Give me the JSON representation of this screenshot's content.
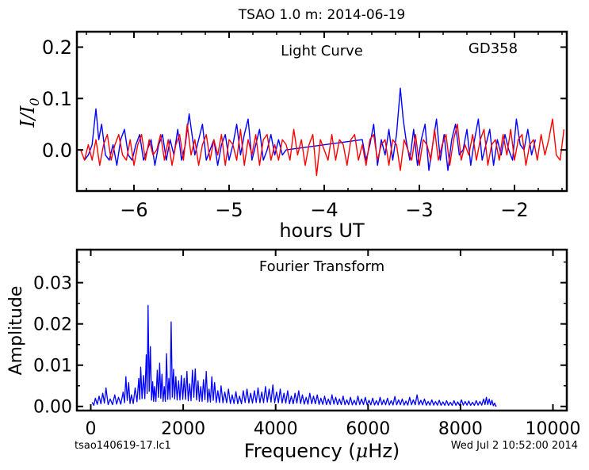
{
  "figure": {
    "title": "TSAO 1.0 m:  2014-06-19",
    "footer_left": "tsao140619-17.lc1",
    "footer_right": "Wed Jul  2 10:52:00 2014"
  },
  "chart_data": [
    {
      "type": "line",
      "title": "Light Curve",
      "annotation": "GD358",
      "xlabel": "hours UT",
      "ylabel": "I/I",
      "ylabel_subscript": "0",
      "xlim": [
        -6.6,
        -1.45
      ],
      "ylim": [
        -0.08,
        0.23
      ],
      "xticks": [
        -6,
        -5,
        -4,
        -3,
        -2
      ],
      "xtick_labels": [
        "−6",
        "−5",
        "−4",
        "−3",
        "−2"
      ],
      "yticks": [
        0.0,
        0.1,
        0.2
      ],
      "ytick_labels": [
        "0.0",
        "0.1",
        "0.2"
      ],
      "colors": {
        "series_a": "#0000ff",
        "series_b": "#ff0000"
      },
      "series": [
        {
          "color": "#0000ff",
          "x": [
            -6.52,
            -6.48,
            -6.44,
            -6.4,
            -6.37,
            -6.34,
            -6.3,
            -6.26,
            -6.22,
            -6.18,
            -6.14,
            -6.1,
            -6.06,
            -6.02,
            -5.98,
            -5.94,
            -5.9,
            -5.86,
            -5.82,
            -5.78,
            -5.74,
            -5.7,
            -5.66,
            -5.62,
            -5.58,
            -5.54,
            -5.5,
            -5.46,
            -5.42,
            -5.39,
            -5.36,
            -5.32,
            -5.28,
            -5.24,
            -5.2,
            -5.16,
            -5.12,
            -5.08,
            -5.04,
            -5.0,
            -4.96,
            -4.92,
            -4.88,
            -4.84,
            -4.8,
            -4.76,
            -4.72,
            -4.68,
            -4.64,
            -4.6,
            -4.56,
            -4.52,
            -4.48,
            -4.44,
            -4.4,
            -3.6,
            -3.56,
            -3.52,
            -3.48,
            -3.44,
            -3.4,
            -3.36,
            -3.32,
            -3.28,
            -3.24,
            -3.2,
            -3.17,
            -3.14,
            -3.1,
            -3.06,
            -3.02,
            -2.98,
            -2.94,
            -2.9,
            -2.86,
            -2.82,
            -2.78,
            -2.74,
            -2.7,
            -2.66,
            -2.62,
            -2.58,
            -2.54,
            -2.5,
            -2.46,
            -2.42,
            -2.38,
            -2.34,
            -2.3,
            -2.26,
            -2.22,
            -2.18,
            -2.14,
            -2.1,
            -2.06,
            -2.02,
            -1.98,
            -1.94,
            -1.9,
            -1.86,
            -1.82,
            -1.78
          ],
          "y": [
            -0.02,
            -0.01,
            0.01,
            0.08,
            0.02,
            0.05,
            -0.01,
            -0.02,
            0.01,
            -0.03,
            0.02,
            0.04,
            -0.01,
            -0.02,
            0.01,
            0.03,
            -0.02,
            0.0,
            0.02,
            -0.03,
            0.01,
            0.03,
            -0.02,
            0.02,
            -0.01,
            0.04,
            -0.02,
            0.01,
            0.07,
            0.03,
            -0.01,
            0.02,
            0.05,
            -0.02,
            0.0,
            0.02,
            -0.03,
            0.01,
            0.03,
            -0.02,
            0.01,
            0.05,
            -0.01,
            0.03,
            0.06,
            -0.02,
            0.01,
            0.04,
            -0.02,
            0.0,
            0.03,
            -0.01,
            0.02,
            -0.01,
            0.0,
            0.02,
            -0.02,
            0.01,
            0.05,
            -0.03,
            0.02,
            -0.01,
            0.04,
            -0.02,
            0.03,
            0.12,
            0.06,
            0.02,
            -0.02,
            0.04,
            -0.03,
            0.02,
            0.05,
            -0.04,
            0.01,
            0.06,
            -0.02,
            0.03,
            -0.04,
            0.02,
            0.05,
            -0.01,
            0.0,
            0.04,
            -0.03,
            0.02,
            0.06,
            -0.02,
            0.01,
            0.04,
            -0.03,
            0.02,
            -0.01,
            0.03,
            0.0,
            -0.02,
            0.06,
            0.01,
            0.0,
            0.04,
            -0.01,
            0.02
          ]
        },
        {
          "color": "#ff0000",
          "x": [
            -6.56,
            -6.52,
            -6.48,
            -6.44,
            -6.4,
            -6.36,
            -6.32,
            -6.28,
            -6.24,
            -6.2,
            -6.16,
            -6.12,
            -6.08,
            -6.04,
            -6.0,
            -5.96,
            -5.92,
            -5.88,
            -5.84,
            -5.8,
            -5.76,
            -5.72,
            -5.68,
            -5.64,
            -5.6,
            -5.56,
            -5.52,
            -5.48,
            -5.44,
            -5.4,
            -5.36,
            -5.32,
            -5.28,
            -5.24,
            -5.2,
            -5.16,
            -5.12,
            -5.08,
            -5.04,
            -5.0,
            -4.96,
            -4.92,
            -4.88,
            -4.84,
            -4.8,
            -4.76,
            -4.72,
            -4.68,
            -4.64,
            -4.6,
            -4.56,
            -4.52,
            -4.48,
            -4.44,
            -4.4,
            -4.36,
            -4.32,
            -4.28,
            -4.24,
            -4.2,
            -4.16,
            -4.12,
            -4.08,
            -4.04,
            -4.0,
            -3.96,
            -3.92,
            -3.88,
            -3.84,
            -3.8,
            -3.76,
            -3.72,
            -3.68,
            -3.64,
            -3.6,
            -3.56,
            -3.52,
            -3.48,
            -3.44,
            -3.4,
            -3.36,
            -3.32,
            -3.28,
            -3.24,
            -3.2,
            -3.16,
            -3.12,
            -3.08,
            -3.04,
            -3.0,
            -2.96,
            -2.92,
            -2.88,
            -2.84,
            -2.8,
            -2.76,
            -2.72,
            -2.68,
            -2.64,
            -2.6,
            -2.56,
            -2.52,
            -2.48,
            -2.44,
            -2.4,
            -2.36,
            -2.32,
            -2.28,
            -2.24,
            -2.2,
            -2.16,
            -2.12,
            -2.08,
            -2.04,
            -2.0,
            -1.96,
            -1.92,
            -1.88,
            -1.84,
            -1.8,
            -1.76,
            -1.72,
            -1.68,
            -1.64,
            -1.6,
            -1.56,
            -1.52,
            -1.48
          ],
          "y": [
            0.0,
            -0.02,
            0.01,
            -0.02,
            0.02,
            -0.03,
            0.01,
            0.03,
            -0.02,
            0.01,
            0.03,
            -0.01,
            -0.02,
            0.02,
            -0.03,
            0.01,
            0.03,
            -0.02,
            0.02,
            -0.01,
            0.0,
            0.03,
            -0.02,
            0.02,
            -0.03,
            0.01,
            0.03,
            -0.02,
            0.05,
            -0.01,
            0.02,
            -0.03,
            0.01,
            0.03,
            -0.02,
            0.02,
            -0.01,
            0.03,
            -0.03,
            0.02,
            0.01,
            -0.02,
            0.04,
            -0.03,
            0.02,
            -0.01,
            0.03,
            -0.03,
            0.02,
            0.03,
            -0.02,
            0.01,
            -0.02,
            0.02,
            0.01,
            -0.02,
            0.04,
            -0.01,
            0.02,
            -0.03,
            0.01,
            0.03,
            -0.05,
            0.02,
            0.0,
            -0.02,
            0.03,
            -0.02,
            0.02,
            0.01,
            -0.03,
            0.02,
            0.03,
            -0.02,
            0.01,
            -0.03,
            0.02,
            0.03,
            -0.02,
            0.01,
            0.02,
            -0.03,
            0.02,
            0.01,
            -0.04,
            0.02,
            0.0,
            -0.02,
            0.03,
            -0.03,
            0.02,
            0.01,
            -0.02,
            0.04,
            -0.02,
            0.01,
            0.03,
            -0.03,
            0.02,
            0.05,
            -0.02,
            0.01,
            -0.01,
            0.03,
            -0.02,
            0.02,
            0.04,
            -0.03,
            0.01,
            0.02,
            -0.02,
            0.03,
            -0.01,
            0.04,
            -0.02,
            0.02,
            0.03,
            -0.03,
            0.01,
            0.02,
            -0.02,
            0.03,
            -0.01,
            0.02,
            0.06,
            -0.01,
            -0.02,
            0.04
          ]
        }
      ]
    },
    {
      "type": "line",
      "title": "Fourier Transform",
      "xlabel_prefix": "Frequency (",
      "xlabel_mu": "μ",
      "xlabel_suffix": "Hz)",
      "ylabel": "Amplitude",
      "xlim": [
        -300,
        10300
      ],
      "ylim": [
        -0.001,
        0.038
      ],
      "xticks": [
        0,
        2000,
        4000,
        6000,
        8000,
        10000
      ],
      "xtick_labels": [
        "0",
        "2000",
        "4000",
        "6000",
        "8000",
        "10000"
      ],
      "yticks": [
        0.0,
        0.01,
        0.02,
        0.03
      ],
      "ytick_labels": [
        "0.00",
        "0.01",
        "0.02",
        "0.03"
      ],
      "colors": {
        "series_a": "#0000ff"
      },
      "series": [
        {
          "color": "#0000ff",
          "peaks": [
            [
              30,
              0.001
            ],
            [
              100,
              0.002
            ],
            [
              180,
              0.0025
            ],
            [
              260,
              0.0032
            ],
            [
              330,
              0.0045
            ],
            [
              420,
              0.0018
            ],
            [
              520,
              0.0028
            ],
            [
              600,
              0.0022
            ],
            [
              700,
              0.0035
            ],
            [
              760,
              0.0072
            ],
            [
              820,
              0.0058
            ],
            [
              880,
              0.0028
            ],
            [
              960,
              0.0045
            ],
            [
              1040,
              0.0068
            ],
            [
              1080,
              0.0095
            ],
            [
              1140,
              0.0075
            ],
            [
              1200,
              0.0125
            ],
            [
              1240,
              0.0245
            ],
            [
              1290,
              0.0145
            ],
            [
              1340,
              0.006
            ],
            [
              1380,
              0.0048
            ],
            [
              1440,
              0.0088
            ],
            [
              1490,
              0.0105
            ],
            [
              1540,
              0.0078
            ],
            [
              1590,
              0.0048
            ],
            [
              1640,
              0.0128
            ],
            [
              1690,
              0.0068
            ],
            [
              1740,
              0.0205
            ],
            [
              1790,
              0.009
            ],
            [
              1840,
              0.0072
            ],
            [
              1900,
              0.0062
            ],
            [
              1960,
              0.0075
            ],
            [
              2020,
              0.0068
            ],
            [
              2080,
              0.0085
            ],
            [
              2140,
              0.0055
            ],
            [
              2200,
              0.0088
            ],
            [
              2260,
              0.0091
            ],
            [
              2320,
              0.0062
            ],
            [
              2380,
              0.0048
            ],
            [
              2440,
              0.0065
            ],
            [
              2500,
              0.0085
            ],
            [
              2560,
              0.0042
            ],
            [
              2620,
              0.0072
            ],
            [
              2680,
              0.0058
            ],
            [
              2750,
              0.0038
            ],
            [
              2820,
              0.005
            ],
            [
              2900,
              0.0035
            ],
            [
              2980,
              0.0042
            ],
            [
              3060,
              0.0028
            ],
            [
              3140,
              0.0036
            ],
            [
              3220,
              0.0025
            ],
            [
              3300,
              0.0038
            ],
            [
              3380,
              0.0042
            ],
            [
              3460,
              0.0032
            ],
            [
              3540,
              0.0038
            ],
            [
              3620,
              0.0045
            ],
            [
              3700,
              0.0035
            ],
            [
              3780,
              0.0048
            ],
            [
              3860,
              0.0042
            ],
            [
              3940,
              0.0052
            ],
            [
              4020,
              0.0035
            ],
            [
              4100,
              0.0042
            ],
            [
              4180,
              0.0032
            ],
            [
              4260,
              0.0038
            ],
            [
              4340,
              0.0025
            ],
            [
              4420,
              0.0032
            ],
            [
              4500,
              0.0038
            ],
            [
              4580,
              0.0028
            ],
            [
              4660,
              0.0022
            ],
            [
              4740,
              0.0032
            ],
            [
              4820,
              0.0025
            ],
            [
              4900,
              0.0028
            ],
            [
              4980,
              0.002
            ],
            [
              5060,
              0.0025
            ],
            [
              5140,
              0.0018
            ],
            [
              5220,
              0.0028
            ],
            [
              5300,
              0.0022
            ],
            [
              5380,
              0.0018
            ],
            [
              5460,
              0.0025
            ],
            [
              5540,
              0.0016
            ],
            [
              5620,
              0.0022
            ],
            [
              5700,
              0.0015
            ],
            [
              5780,
              0.0025
            ],
            [
              5860,
              0.0018
            ],
            [
              5940,
              0.0022
            ],
            [
              6020,
              0.0015
            ],
            [
              6100,
              0.002
            ],
            [
              6180,
              0.0014
            ],
            [
              6260,
              0.0022
            ],
            [
              6340,
              0.0016
            ],
            [
              6420,
              0.002
            ],
            [
              6500,
              0.0014
            ],
            [
              6580,
              0.0024
            ],
            [
              6660,
              0.0016
            ],
            [
              6740,
              0.0018
            ],
            [
              6820,
              0.0013
            ],
            [
              6900,
              0.0022
            ],
            [
              6980,
              0.0016
            ],
            [
              7060,
              0.0028
            ],
            [
              7140,
              0.0015
            ],
            [
              7220,
              0.0018
            ],
            [
              7300,
              0.0012
            ],
            [
              7380,
              0.0016
            ],
            [
              7460,
              0.0012
            ],
            [
              7540,
              0.0015
            ],
            [
              7620,
              0.0011
            ],
            [
              7700,
              0.0014
            ],
            [
              7780,
              0.001
            ],
            [
              7860,
              0.0014
            ],
            [
              7940,
              0.0011
            ],
            [
              8020,
              0.0016
            ],
            [
              8100,
              0.0012
            ],
            [
              8180,
              0.0013
            ],
            [
              8260,
              0.001
            ],
            [
              8340,
              0.0014
            ],
            [
              8420,
              0.0012
            ],
            [
              8500,
              0.0018
            ],
            [
              8560,
              0.0022
            ],
            [
              8620,
              0.0018
            ],
            [
              8680,
              0.0015
            ],
            [
              8740,
              0.0008
            ],
            [
              8780,
              0.0002
            ]
          ]
        }
      ]
    }
  ]
}
